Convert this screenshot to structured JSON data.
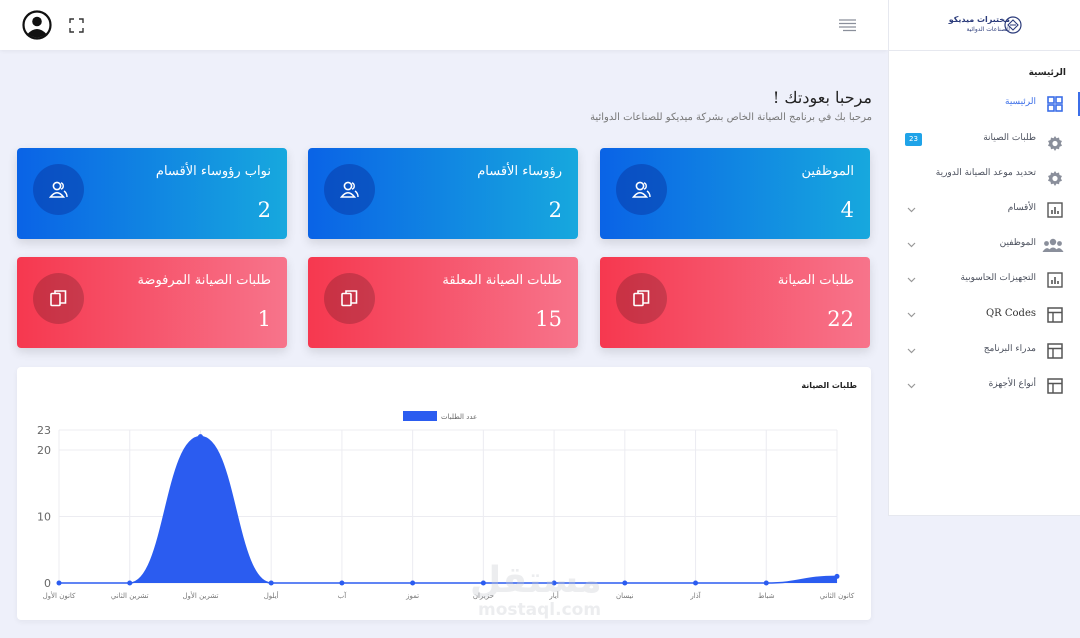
{
  "header": {
    "avatar_icon": "user-circle-icon",
    "fullscreen_icon": "expand-icon",
    "menu_icon": "hamburger-menu-icon"
  },
  "sidebar": {
    "logo": {
      "name": "مختبرات ميديكو",
      "subtitle": "للصناعات الدوائية"
    },
    "section_title": "الرئيسية",
    "items": [
      {
        "label": "الرئيسية",
        "icon": "dashboard-grid-icon",
        "active": true
      },
      {
        "label": "طلبات الصيانة",
        "icon": "gear-icon",
        "badge": "23"
      },
      {
        "label": "تحديد موعد الصيانة الدورية",
        "icon": "gear-icon"
      },
      {
        "label": "الأقسام",
        "icon": "bar-chart-icon",
        "expandable": true
      },
      {
        "label": "الموظفين",
        "icon": "users-icon",
        "expandable": true
      },
      {
        "label": "التجهيزات الحاسوبية",
        "icon": "bar-chart-icon",
        "expandable": true
      },
      {
        "label": "QR Codes",
        "icon": "table-icon",
        "expandable": true
      },
      {
        "label": "مدراء البرنامج",
        "icon": "table-icon",
        "expandable": true
      },
      {
        "label": "أنواع الأجهزة",
        "icon": "table-icon",
        "expandable": true
      }
    ]
  },
  "welcome": {
    "title": "مرحبا بعودتك !",
    "subtitle": "مرحبا بك في برنامج الصيانة الخاص بشركة ميديكو للصناعات الدوائية"
  },
  "cards": [
    {
      "label": "الموظفين",
      "value": "4",
      "color": "blue",
      "icon": "users-icon"
    },
    {
      "label": "رؤوساء الأقسام",
      "value": "2",
      "color": "blue",
      "icon": "users-icon"
    },
    {
      "label": "نواب رؤوساء الأقسام",
      "value": "2",
      "color": "blue",
      "icon": "users-icon"
    },
    {
      "label": "طلبات الصيانة",
      "value": "22",
      "color": "red",
      "icon": "copy-icon"
    },
    {
      "label": "طلبات الصيانة المعلقة",
      "value": "15",
      "color": "red",
      "icon": "copy-icon"
    },
    {
      "label": "طلبات الصيانة المرفوضة",
      "value": "1",
      "color": "red",
      "icon": "copy-icon"
    }
  ],
  "colors": {
    "accent": "#3b6ee8",
    "card_blue": "#0a63e6",
    "card_red": "#f6384f",
    "series": "#2b5cf0"
  },
  "chart_data": {
    "type": "area",
    "title": "طلبات الصيانة",
    "categories": [
      "كانون الثاني",
      "شباط",
      "آذار",
      "نيسان",
      "أيار",
      "حزيران",
      "تموز",
      "آب",
      "أيلول",
      "تشرين الأول",
      "تشرين الثاني",
      "كانون الأول"
    ],
    "series": [
      {
        "name": "عدد الطلبات",
        "values": [
          1,
          0,
          0,
          0,
          0,
          0,
          0,
          0,
          0,
          22,
          0,
          0
        ]
      }
    ],
    "yticks": [
      0,
      10,
      20,
      23
    ],
    "ylim": [
      0,
      23
    ],
    "grid": true,
    "legend": "top-center"
  }
}
